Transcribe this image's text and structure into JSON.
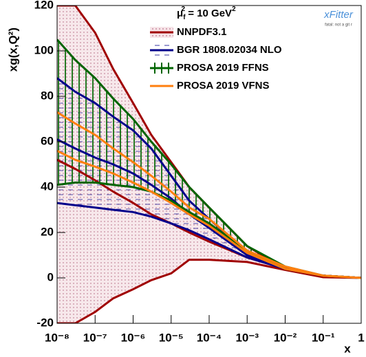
{
  "chart_data": {
    "type": "band",
    "ylabel": "xg(x,Q²)",
    "xlabel": "x",
    "legend_title": [
      "μ",
      "f",
      "2",
      " = 10 GeV",
      "2"
    ],
    "logo": {
      "title": "xFitter",
      "subtitle": "fatal: not a git r"
    },
    "xscale": "log",
    "xlim": [
      1e-08,
      1
    ],
    "ylim": [
      -20,
      120
    ],
    "xticks": [
      {
        "value": 1e-08,
        "label": "10⁻⁸"
      },
      {
        "value": 1e-07,
        "label": "10⁻⁷"
      },
      {
        "value": 1e-06,
        "label": "10⁻⁶"
      },
      {
        "value": 1e-05,
        "label": "10⁻⁵"
      },
      {
        "value": 0.0001,
        "label": "10⁻⁴"
      },
      {
        "value": 0.001,
        "label": "10⁻³"
      },
      {
        "value": 0.01,
        "label": "10⁻²"
      },
      {
        "value": 0.1,
        "label": "10⁻¹"
      },
      1
    ],
    "yticks": [
      -20,
      0,
      20,
      40,
      60,
      80,
      100,
      120
    ],
    "x": [
      1e-08,
      3e-08,
      1e-07,
      3e-07,
      1e-06,
      3e-06,
      1e-05,
      3e-05,
      0.0001,
      0.001,
      0.01,
      0.1,
      1
    ],
    "series": [
      {
        "name": "NNPDF3.1",
        "color": "#a00000",
        "fill": "dots",
        "values": [
          52,
          48,
          43,
          38,
          33,
          28,
          24,
          20,
          16,
          9,
          4,
          1,
          0
        ],
        "upper": [
          120,
          120,
          108,
          92,
          77,
          63,
          51,
          40,
          31,
          14,
          4,
          1,
          0
        ],
        "lower": [
          -20,
          -20,
          -15,
          -9,
          -5,
          -1,
          2,
          8,
          8,
          7,
          3.5,
          0.3,
          0
        ]
      },
      {
        "name": "BGR 1808.02034 NLO",
        "color": "#00008b",
        "fill": "dashes",
        "values": [
          61,
          57,
          53,
          50,
          46,
          41,
          35,
          28,
          22,
          10,
          4,
          1,
          0
        ],
        "upper": [
          88,
          82,
          77,
          71,
          65,
          57,
          45,
          34,
          26,
          11,
          4,
          1,
          0
        ],
        "lower": [
          33,
          32,
          31,
          30,
          29,
          27,
          24,
          21,
          17,
          9,
          4,
          1,
          0
        ]
      },
      {
        "name": "PROSA 2019 FFNS",
        "color": "#006400",
        "fill": "vlines",
        "upper": [
          105,
          96,
          88,
          79,
          70,
          60,
          50,
          40,
          31,
          14,
          5,
          1,
          0
        ],
        "lower": [
          41,
          42,
          42,
          41,
          40,
          38,
          34,
          29,
          24,
          12,
          4,
          1,
          0
        ]
      },
      {
        "name": "PROSA 2019 VFNS",
        "color": "#ff7f0e",
        "fill": "none",
        "upper": [
          73,
          68,
          63,
          57,
          51,
          45,
          38,
          31,
          26,
          12,
          5,
          1,
          0
        ],
        "lower": [
          56,
          52,
          49,
          46,
          42,
          38,
          33,
          28,
          23,
          11,
          4,
          1,
          0
        ]
      }
    ]
  }
}
